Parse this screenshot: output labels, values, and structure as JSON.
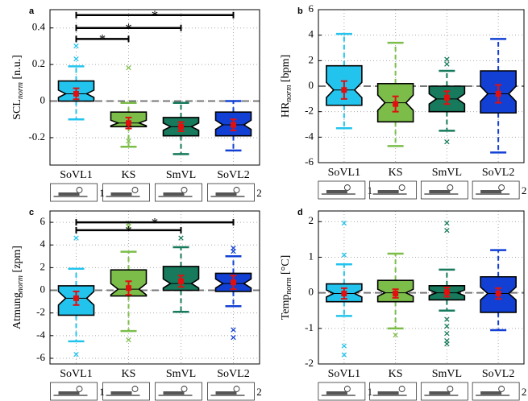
{
  "chart_data": [
    {
      "type": "box",
      "panel": "a",
      "ylabel": {
        "base": "SCL",
        "sub": "norm",
        "unit": " [n.u.]"
      },
      "categories": [
        "SoVL1",
        "KS",
        "SmVL",
        "SoVL2"
      ],
      "icon_labels": [
        "1",
        null,
        null,
        "2"
      ],
      "colors": [
        "#22c4ee",
        "#7cbd4a",
        "#177a5c",
        "#1240d4"
      ],
      "ylim": [
        -0.35,
        0.5
      ],
      "yticks": [
        -0.2,
        0,
        0.2,
        0.4
      ],
      "reference_line": 0,
      "grid": true,
      "boxes": [
        {
          "whisker": [
            -0.1,
            0.19
          ],
          "q": [
            0.0,
            0.11
          ],
          "median": 0.04,
          "notch": [
            0.02,
            0.06
          ],
          "mean": 0.04,
          "err": 0.03,
          "outliers": [
            0.3,
            0.23
          ]
        },
        {
          "whisker": [
            -0.25,
            -0.01
          ],
          "q": [
            -0.14,
            -0.06
          ],
          "median": -0.12,
          "notch": [
            -0.135,
            -0.105
          ],
          "mean": -0.12,
          "err": 0.03,
          "outliers": [
            0.18,
            -0.22
          ]
        },
        {
          "whisker": [
            -0.29,
            -0.01
          ],
          "q": [
            -0.19,
            -0.09
          ],
          "median": -0.14,
          "notch": [
            -0.16,
            -0.12
          ],
          "mean": -0.14,
          "err": 0.025,
          "outliers": []
        },
        {
          "whisker": [
            -0.27,
            0.0
          ],
          "q": [
            -0.19,
            -0.06
          ],
          "median": -0.13,
          "notch": [
            -0.155,
            -0.105
          ],
          "mean": -0.13,
          "err": 0.03,
          "outliers": []
        }
      ],
      "brackets": [
        {
          "from": 0,
          "to": 3,
          "y": 0.47,
          "label": "*"
        },
        {
          "from": 0,
          "to": 2,
          "y": 0.4,
          "label": "*"
        },
        {
          "from": 0,
          "to": 1,
          "y": 0.34,
          "label": "*"
        }
      ]
    },
    {
      "type": "box",
      "panel": "b",
      "ylabel": {
        "base": "HR",
        "sub": "norm",
        "unit": " [bpm]"
      },
      "categories": [
        "SoVL1",
        "KS",
        "SmVL",
        "SoVL2"
      ],
      "icon_labels": [
        "1",
        null,
        null,
        "2"
      ],
      "colors": [
        "#22c4ee",
        "#7cbd4a",
        "#177a5c",
        "#1240d4"
      ],
      "ylim": [
        -6,
        6
      ],
      "yticks": [
        -6,
        -4,
        -2,
        0,
        2,
        4,
        6
      ],
      "reference_line": 0,
      "grid": true,
      "boxes": [
        {
          "whisker": [
            -3.3,
            4.1
          ],
          "q": [
            -1.5,
            1.6
          ],
          "median": -0.3,
          "notch": [
            -0.9,
            0.3
          ],
          "mean": -0.3,
          "err": 0.7,
          "outliers": []
        },
        {
          "whisker": [
            -4.7,
            3.4
          ],
          "q": [
            -2.8,
            0.2
          ],
          "median": -1.3,
          "notch": [
            -1.9,
            -0.7
          ],
          "mean": -1.4,
          "err": 0.6,
          "outliers": []
        },
        {
          "whisker": [
            -3.5,
            1.2
          ],
          "q": [
            -2.0,
            0.0
          ],
          "median": -1.0,
          "notch": [
            -1.4,
            -0.6
          ],
          "mean": -0.9,
          "err": 0.5,
          "outliers": [
            2.1,
            1.7,
            -4.4
          ]
        },
        {
          "whisker": [
            -5.2,
            3.7
          ],
          "q": [
            -2.1,
            1.2
          ],
          "median": -0.6,
          "notch": [
            -1.2,
            0.0
          ],
          "mean": -0.6,
          "err": 0.7,
          "outliers": []
        }
      ],
      "brackets": []
    },
    {
      "type": "box",
      "panel": "c",
      "ylabel": {
        "base": "Atmung",
        "sub": "norm",
        "unit": " [zpm]"
      },
      "categories": [
        "SoVL1",
        "KS",
        "SmVL",
        "SoVL2"
      ],
      "icon_labels": [
        "1",
        null,
        null,
        "2"
      ],
      "colors": [
        "#22c4ee",
        "#7cbd4a",
        "#177a5c",
        "#1240d4"
      ],
      "ylim": [
        -6.5,
        7
      ],
      "yticks": [
        -6,
        -4,
        -2,
        0,
        2,
        4,
        6
      ],
      "reference_line": 0,
      "grid": true,
      "boxes": [
        {
          "whisker": [
            -4.5,
            1.9
          ],
          "q": [
            -2.2,
            0.4
          ],
          "median": -0.7,
          "notch": [
            -1.3,
            -0.1
          ],
          "mean": -0.7,
          "err": 0.6,
          "outliers": [
            4.6,
            -5.7
          ]
        },
        {
          "whisker": [
            -3.6,
            3.4
          ],
          "q": [
            -0.5,
            1.8
          ],
          "median": 0.1,
          "notch": [
            -0.4,
            0.6
          ],
          "mean": 0.2,
          "err": 0.6,
          "outliers": [
            5.6,
            5.9,
            -4.4
          ]
        },
        {
          "whisker": [
            -1.9,
            3.8
          ],
          "q": [
            0.0,
            2.1
          ],
          "median": 0.6,
          "notch": [
            0.2,
            1.0
          ],
          "mean": 0.8,
          "err": 0.5,
          "outliers": [
            4.6
          ]
        },
        {
          "whisker": [
            -1.4,
            3.0
          ],
          "q": [
            -0.1,
            1.5
          ],
          "median": 0.6,
          "notch": [
            0.2,
            1.0
          ],
          "mean": 0.7,
          "err": 0.6,
          "outliers": [
            3.7,
            3.4,
            -3.5,
            -4.2
          ]
        }
      ],
      "brackets": [
        {
          "from": 0,
          "to": 3,
          "y": 6.0,
          "label": "*"
        },
        {
          "from": 0,
          "to": 2,
          "y": 5.3,
          "label": "*"
        }
      ]
    },
    {
      "type": "box",
      "panel": "d",
      "ylabel": {
        "base": "Temp",
        "sub": "norm",
        "unit": " [°C]"
      },
      "categories": [
        "SoVL1",
        "KS",
        "SmVL",
        "SoVL2"
      ],
      "icon_labels": [
        "1",
        null,
        null,
        "2"
      ],
      "colors": [
        "#22c4ee",
        "#7cbd4a",
        "#177a5c",
        "#1240d4"
      ],
      "ylim": [
        -2,
        2.3
      ],
      "yticks": [
        -2,
        -1,
        0,
        1,
        2
      ],
      "reference_line": 0,
      "grid": true,
      "boxes": [
        {
          "whisker": [
            -0.65,
            0.8
          ],
          "q": [
            -0.25,
            0.25
          ],
          "median": -0.02,
          "notch": [
            -0.12,
            0.08
          ],
          "mean": -0.02,
          "err": 0.15,
          "outliers": [
            1.95,
            1.05,
            -1.5,
            -1.75
          ]
        },
        {
          "whisker": [
            -1.0,
            1.1
          ],
          "q": [
            -0.25,
            0.35
          ],
          "median": 0.0,
          "notch": [
            -0.1,
            0.1
          ],
          "mean": -0.02,
          "err": 0.12,
          "outliers": [
            -1.2
          ]
        },
        {
          "whisker": [
            -0.5,
            0.65
          ],
          "q": [
            -0.2,
            0.2
          ],
          "median": 0.0,
          "notch": [
            -0.08,
            0.08
          ],
          "mean": 0.02,
          "err": 0.13,
          "outliers": [
            1.95,
            1.75,
            -0.75,
            -0.95,
            -1.15,
            -1.35,
            -1.45
          ]
        },
        {
          "whisker": [
            -1.05,
            1.2
          ],
          "q": [
            -0.55,
            0.45
          ],
          "median": -0.02,
          "notch": [
            -0.2,
            0.16
          ],
          "mean": -0.02,
          "err": 0.15,
          "outliers": []
        }
      ],
      "brackets": []
    }
  ]
}
